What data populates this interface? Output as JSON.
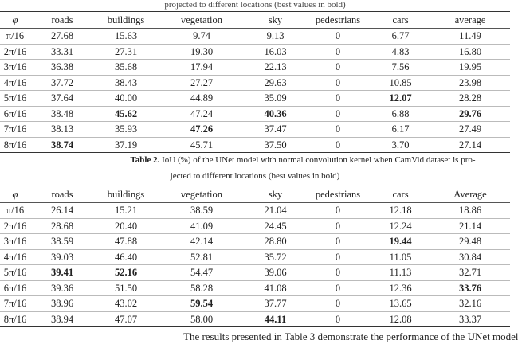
{
  "table1": {
    "caption_partial": "projected to different locations (best values in bold)",
    "headers": [
      "φ",
      "roads",
      "buildings",
      "vegetation",
      "sky",
      "pedestrians",
      "cars",
      "average"
    ],
    "rows": [
      [
        "π/16",
        "27.68",
        "15.63",
        "9.74",
        "9.13",
        "0",
        "6.77",
        "11.49"
      ],
      [
        "2π/16",
        "33.31",
        "27.31",
        "19.30",
        "16.03",
        "0",
        "4.83",
        "16.80"
      ],
      [
        "3π/16",
        "36.38",
        "35.68",
        "17.94",
        "22.13",
        "0",
        "7.56",
        "19.95"
      ],
      [
        "4π/16",
        "37.72",
        "38.43",
        "27.27",
        "29.63",
        "0",
        "10.85",
        "23.98"
      ],
      [
        "5π/16",
        "37.64",
        "40.00",
        "44.89",
        "35.09",
        "0",
        "12.07",
        "28.28"
      ],
      [
        "6π/16",
        "38.48",
        "45.62",
        "47.24",
        "40.36",
        "0",
        "6.88",
        "29.76"
      ],
      [
        "7π/16",
        "38.13",
        "35.93",
        "47.26",
        "37.47",
        "0",
        "6.17",
        "27.49"
      ],
      [
        "8π/16",
        "38.74",
        "37.19",
        "45.71",
        "37.50",
        "0",
        "3.70",
        "27.14"
      ]
    ],
    "bold": [
      [
        4,
        6
      ],
      [
        5,
        2
      ],
      [
        5,
        4
      ],
      [
        5,
        7
      ],
      [
        6,
        3
      ],
      [
        7,
        1
      ]
    ]
  },
  "table2": {
    "caption_label": "Table 2.",
    "caption_line1": " IoU (%) of the UNet model with normal convolution kernel when CamVid dataset is pro-",
    "caption_line2": "jected to different locations (best values in bold)",
    "headers": [
      "φ",
      "roads",
      "buildings",
      "vegetation",
      "sky",
      "pedestrians",
      "cars",
      "Average"
    ],
    "rows": [
      [
        "π/16",
        "26.14",
        "15.21",
        "38.59",
        "21.04",
        "0",
        "12.18",
        "18.86"
      ],
      [
        "2π/16",
        "28.68",
        "20.40",
        "41.09",
        "24.45",
        "0",
        "12.24",
        "21.14"
      ],
      [
        "3π/16",
        "38.59",
        "47.88",
        "42.14",
        "28.80",
        "0",
        "19.44",
        "29.48"
      ],
      [
        "4π/16",
        "39.03",
        "46.40",
        "52.81",
        "35.72",
        "0",
        "11.05",
        "30.84"
      ],
      [
        "5π/16",
        "39.41",
        "52.16",
        "54.47",
        "39.06",
        "0",
        "11.13",
        "32.71"
      ],
      [
        "6π/16",
        "39.36",
        "51.50",
        "58.28",
        "41.08",
        "0",
        "12.36",
        "33.76"
      ],
      [
        "7π/16",
        "38.96",
        "43.02",
        "59.54",
        "37.77",
        "0",
        "13.65",
        "32.16"
      ],
      [
        "8π/16",
        "38.94",
        "47.07",
        "58.00",
        "44.11",
        "0",
        "12.08",
        "33.37"
      ]
    ],
    "bold": [
      [
        2,
        6
      ],
      [
        4,
        1
      ],
      [
        4,
        2
      ],
      [
        5,
        7
      ],
      [
        6,
        3
      ],
      [
        7,
        4
      ]
    ]
  },
  "paragraph": "The results presented in Table 3 demonstrate the performance of the UNet model"
}
